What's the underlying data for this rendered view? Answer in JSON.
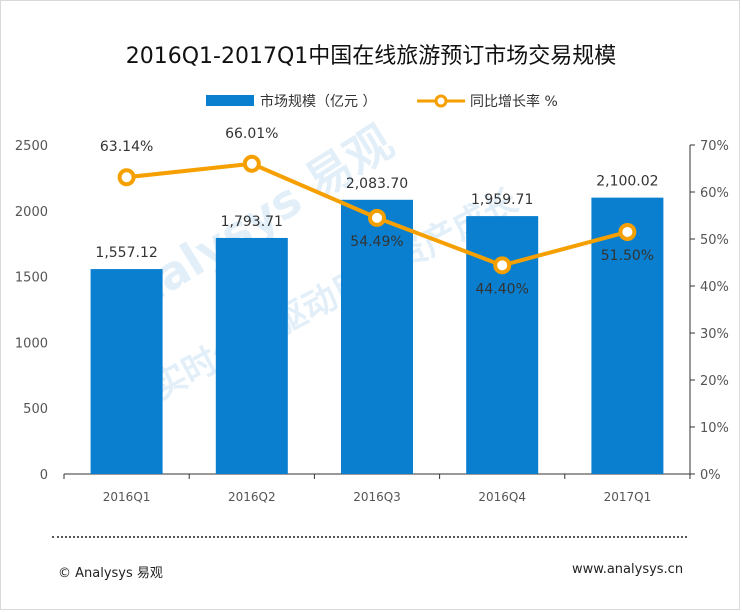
{
  "title": "2016Q1-2017Q1中国在线旅游预订市场交易规模",
  "legend": {
    "bar_label": "市场规模（亿元 ）",
    "line_label": "同比增长率 %"
  },
  "footer": {
    "left": "© Analysys 易观",
    "right": "www.analysys.cn"
  },
  "watermark": {
    "line1": "Analysys 易观",
    "line2": "实时分析驱动用户资产成长"
  },
  "colors": {
    "bar": "#0a7fcf",
    "line": "#f5a000",
    "marker_fill": "#ffffff",
    "axis": "#333333"
  },
  "chart_data": {
    "type": "bar",
    "categories": [
      "2016Q1",
      "2016Q2",
      "2016Q3",
      "2016Q4",
      "2017Q1"
    ],
    "series": [
      {
        "name": "市场规模（亿元 ）",
        "type": "bar",
        "axis": "left",
        "values": [
          1557.12,
          1793.71,
          2083.7,
          1959.71,
          2100.02
        ],
        "labels": [
          "1,557.12",
          "1,793.71",
          "2,083.70",
          "1,959.71",
          "2,100.02"
        ]
      },
      {
        "name": "同比增长率 %",
        "type": "line",
        "axis": "right",
        "values": [
          63.14,
          66.01,
          54.49,
          44.4,
          51.5
        ],
        "labels": [
          "63.14%",
          "66.01%",
          "54.49%",
          "44.40%",
          "51.50%"
        ]
      }
    ],
    "y_left": {
      "ylim": [
        0,
        2500
      ],
      "ticks": [
        "0",
        "500",
        "1000",
        "1500",
        "2000",
        "2500"
      ]
    },
    "y_right": {
      "ylim": [
        0,
        70
      ],
      "ticks": [
        "0%",
        "10%",
        "20%",
        "30%",
        "40%",
        "50%",
        "60%",
        "70%"
      ]
    },
    "grid": false,
    "legend_position": "top"
  }
}
